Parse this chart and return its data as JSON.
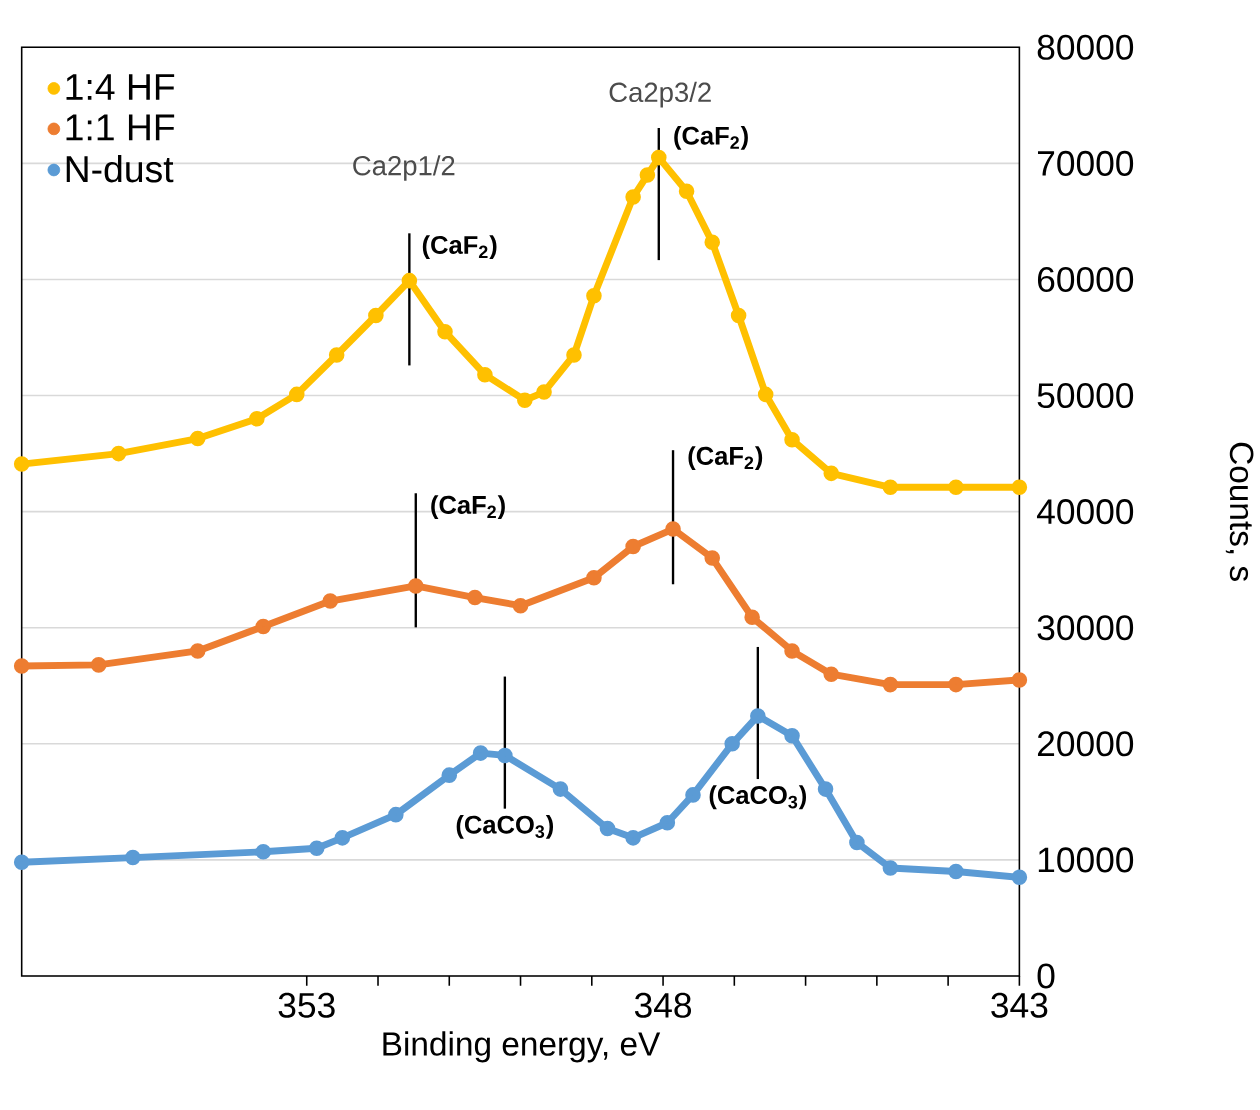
{
  "chart_data": {
    "type": "line",
    "xlabel": "Binding energy, eV",
    "ylabel": "Counts, s",
    "xlim": [
      357,
      343
    ],
    "xticks": [
      353,
      348,
      343
    ],
    "ylim": [
      0,
      80000
    ],
    "yticks": [
      0,
      10000,
      20000,
      30000,
      40000,
      50000,
      60000,
      70000,
      80000
    ],
    "grid": "y",
    "legend": "top left",
    "marker": "circle",
    "series": [
      {
        "name": "1:4 HF",
        "color": "#ffc000",
        "x": [
          357,
          355.64,
          354.53,
          353.7,
          353.14,
          352.58,
          352.03,
          351.56,
          351.06,
          350.5,
          349.94,
          349.67,
          349.25,
          348.97,
          348.42,
          348.22,
          348.06,
          347.67,
          347.31,
          346.94,
          346.56,
          346.19,
          345.64,
          344.81,
          343.89,
          343
        ],
        "values": [
          44100,
          45000,
          46300,
          48000,
          50100,
          53500,
          56900,
          59900,
          55500,
          51800,
          49600,
          50300,
          53500,
          58600,
          67100,
          69000,
          70500,
          67600,
          63200,
          56900,
          50100,
          46200,
          43300,
          42100,
          42100,
          42100
        ]
      },
      {
        "name": "1:1 HF",
        "color": "#ed7d31",
        "x": [
          357,
          355.92,
          354.53,
          353.61,
          352.67,
          351.47,
          350.64,
          350.0,
          348.97,
          348.42,
          347.86,
          347.31,
          346.75,
          346.19,
          345.64,
          344.81,
          343.89,
          343
        ],
        "values": [
          26700,
          26800,
          28000,
          30100,
          32300,
          33600,
          32600,
          31900,
          34300,
          37000,
          38500,
          36000,
          30900,
          28000,
          26000,
          25100,
          25100,
          25500
        ]
      },
      {
        "name": "N-dust",
        "color": "#5b9bd5",
        "x": [
          357,
          355.44,
          353.61,
          352.86,
          352.5,
          351.75,
          351.0,
          350.56,
          350.22,
          349.44,
          348.78,
          348.42,
          347.94,
          347.58,
          347.03,
          346.67,
          346.19,
          345.72,
          345.28,
          344.81,
          343.89,
          343
        ],
        "values": [
          9800,
          10200,
          10700,
          11000,
          11900,
          13900,
          17300,
          19200,
          19000,
          16100,
          12700,
          11900,
          13200,
          15600,
          20000,
          22400,
          20700,
          16100,
          11500,
          9300,
          9000,
          8500
        ]
      }
    ],
    "annotations": [
      "Ca2p1/2",
      {
        "text": "(CaF$_{2}$)",
        "x": 351.56,
        "y": 59900
      },
      "Ca2p3/2",
      {
        "text": "(CaF$_{2}$)",
        "x": 348.06,
        "y": 70500
      },
      {
        "text": "(CaF$_{2}$)",
        "x": 351.47,
        "y": 33600
      },
      {
        "text": "(CaF$_{2}$)",
        "x": 347.86,
        "y": 38500
      },
      {
        "text": "(CaCO$_{3}$)",
        "x": 350.22,
        "y": 19000
      },
      {
        "text": "(CaCO$_{3}$)",
        "x": 346.67,
        "y": 22400
      }
    ]
  }
}
